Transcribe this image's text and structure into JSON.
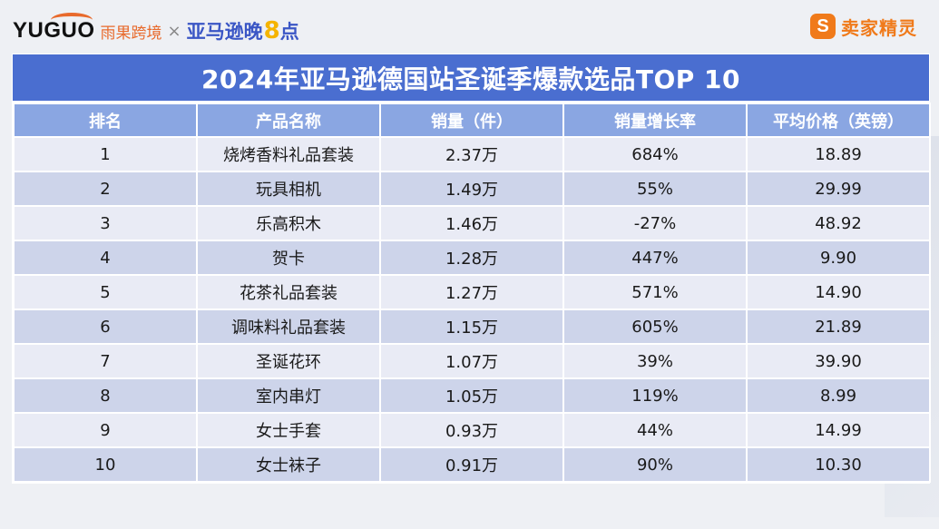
{
  "header": {
    "yuguo_word": "YUGUO",
    "yuguo_cn": "雨果跨境",
    "times": "×",
    "amz_word": "亚马逊晚",
    "amz_eight": "8",
    "amz_point": "点",
    "mjjl_badge": "S",
    "mjjl_word": "卖家精灵"
  },
  "colors": {
    "title_bg": "#4a6ed0",
    "header_bg": "#8aa6e2",
    "row_light": "#e9ebf5",
    "row_dark": "#cdd4ea",
    "accent_orange": "#f07a1a",
    "amz_blue": "#3a56c5"
  },
  "table": {
    "title": "2024年亚马逊德国站圣诞季爆款选品TOP 10",
    "columns": [
      "排名",
      "产品名称",
      "销量（件）",
      "销量增长率",
      "平均价格（英镑）"
    ],
    "rows": [
      [
        "1",
        "烧烤香料礼品套装",
        "2.37万",
        "684%",
        "18.89"
      ],
      [
        "2",
        "玩具相机",
        "1.49万",
        "55%",
        "29.99"
      ],
      [
        "3",
        "乐高积木",
        "1.46万",
        "-27%",
        "48.92"
      ],
      [
        "4",
        "贺卡",
        "1.28万",
        "447%",
        "9.90"
      ],
      [
        "5",
        "花茶礼品套装",
        "1.27万",
        "571%",
        "14.90"
      ],
      [
        "6",
        "调味料礼品套装",
        "1.15万",
        "605%",
        "21.89"
      ],
      [
        "7",
        "圣诞花环",
        "1.07万",
        "39%",
        "39.90"
      ],
      [
        "8",
        "室内串灯",
        "1.05万",
        "119%",
        "8.99"
      ],
      [
        "9",
        "女士手套",
        "0.93万",
        "44%",
        "14.99"
      ],
      [
        "10",
        "女士袜子",
        "0.91万",
        "90%",
        "10.30"
      ]
    ]
  }
}
